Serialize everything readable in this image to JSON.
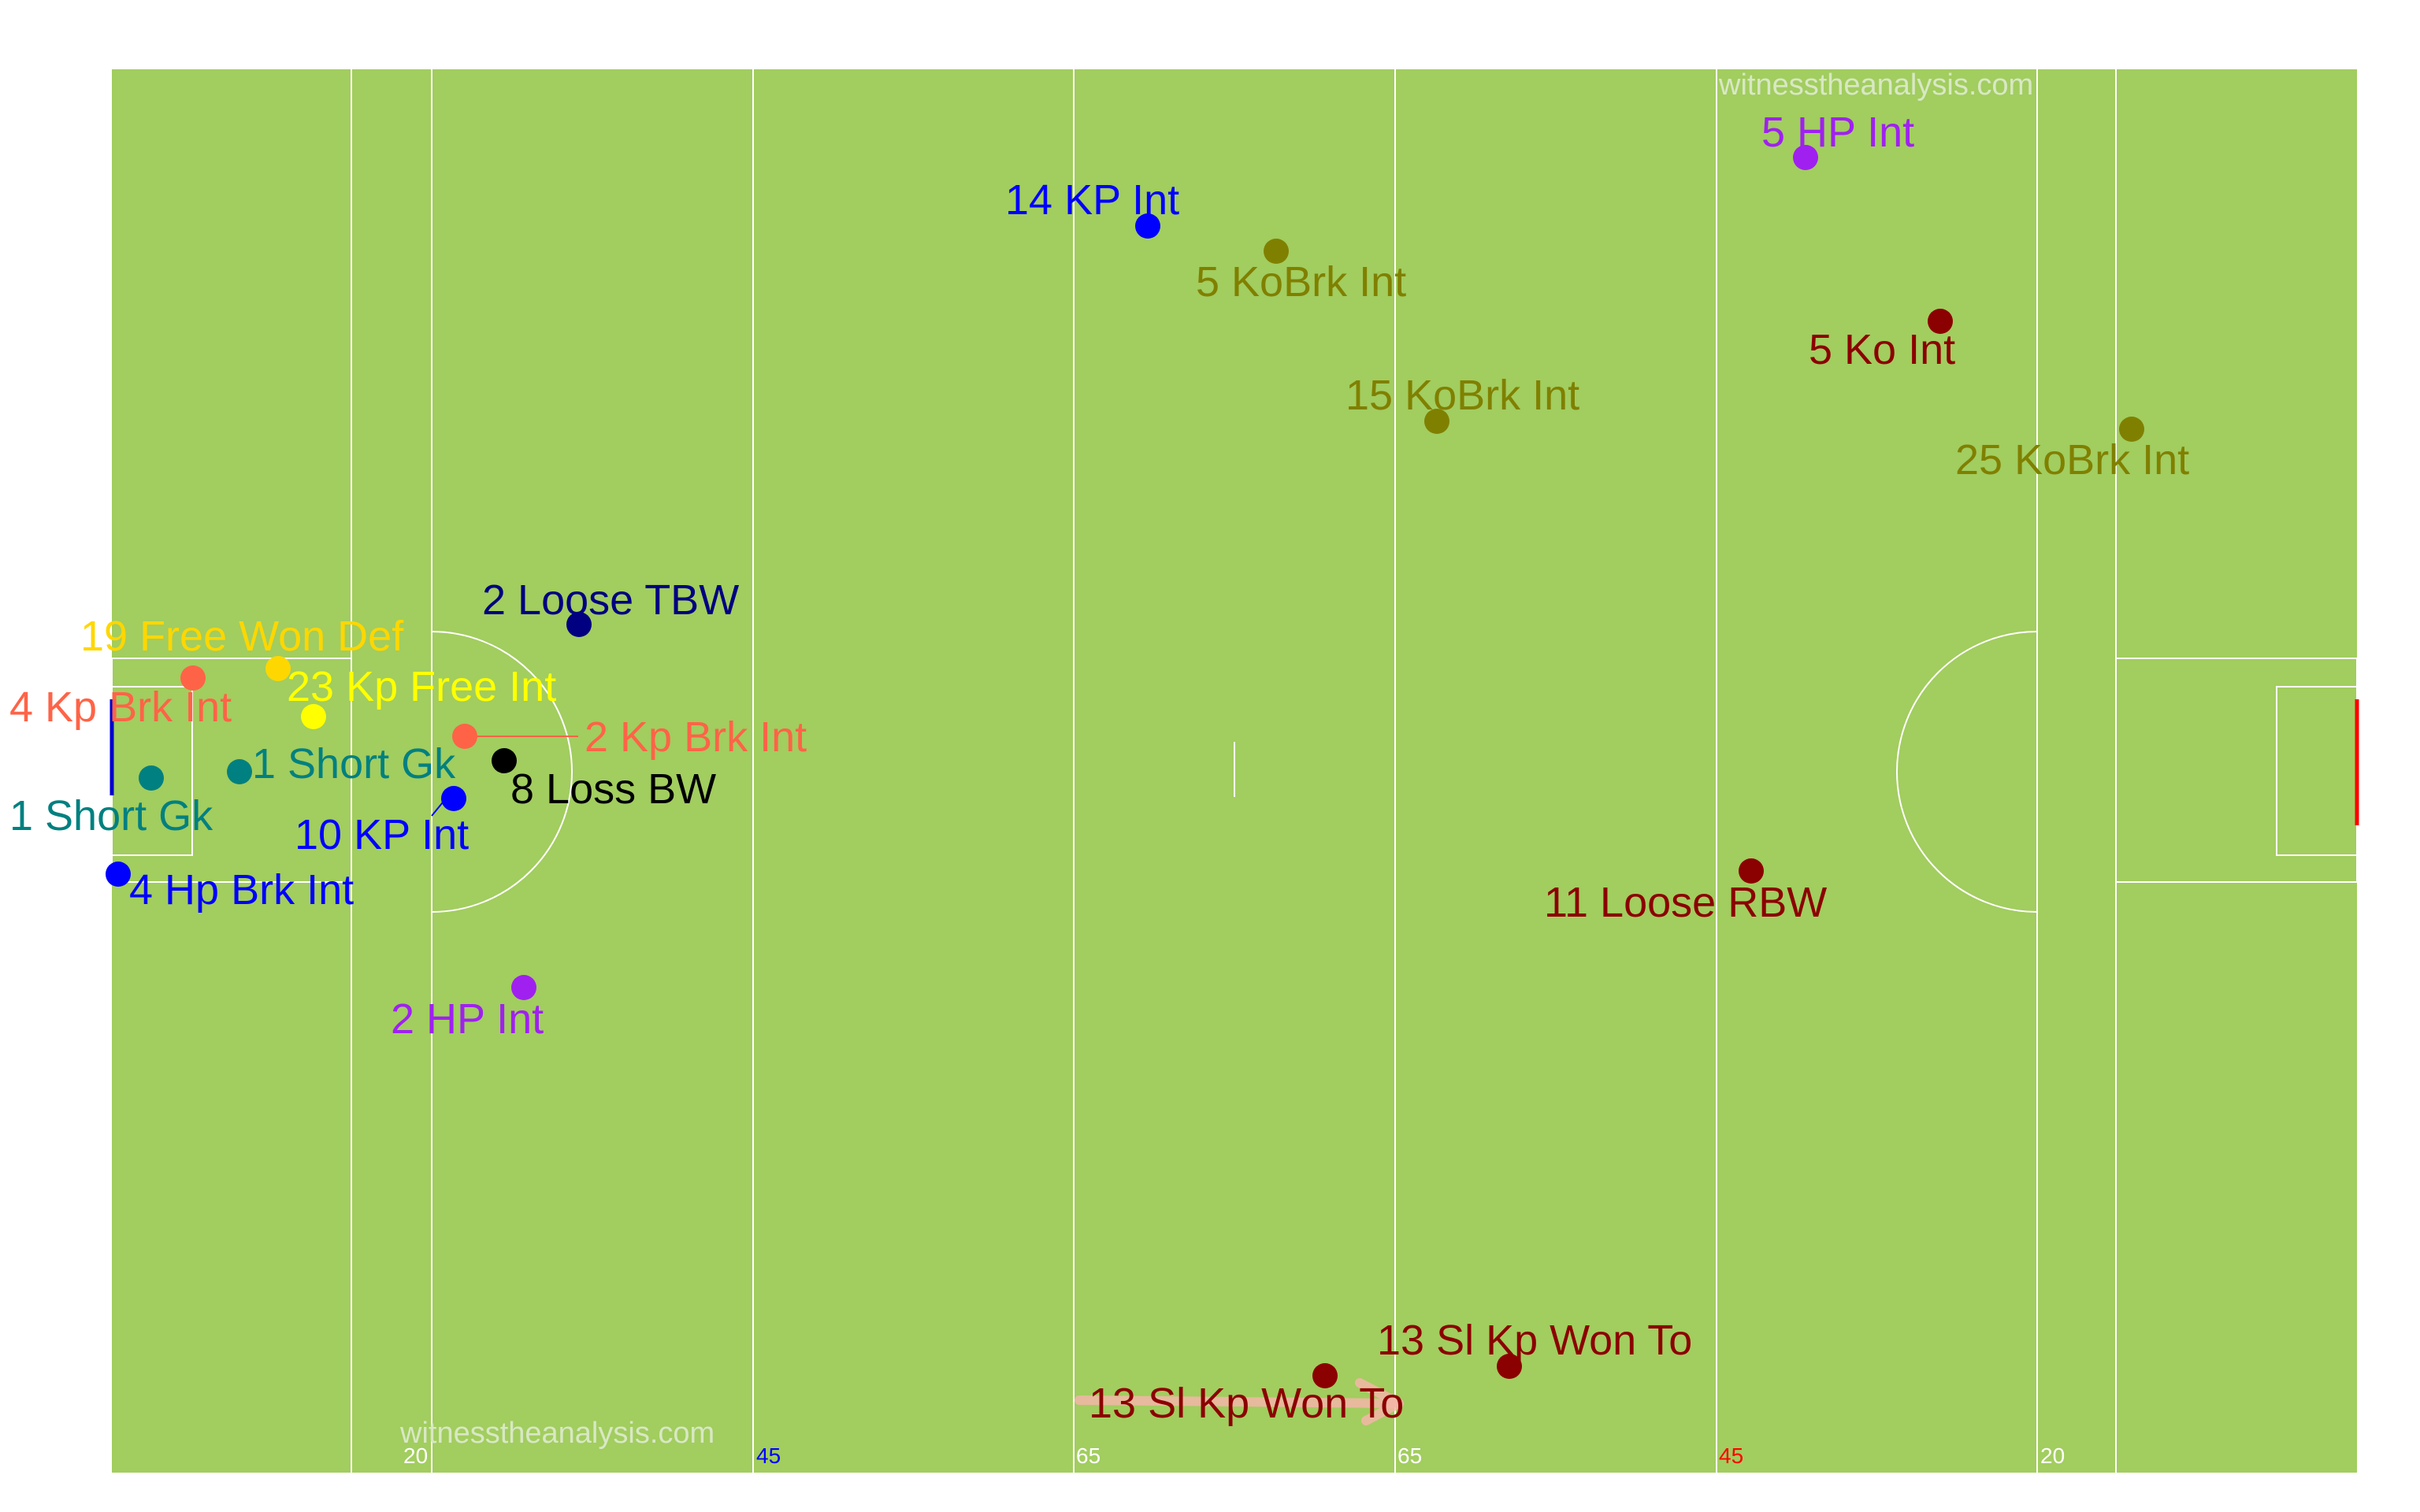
{
  "watermarks": [
    "witnesstheanalysis.com",
    "witnesstheanalysis.com"
  ],
  "colors": {
    "pitch": "#a2cd5f",
    "line": "#ffffff",
    "right_goal": "#ff0000",
    "left_goal": "#0000cc"
  },
  "line_markers": [
    {
      "label": "20",
      "color": "#ffffff"
    },
    {
      "label": "45",
      "color": "#0000ff"
    },
    {
      "label": "65",
      "color": "#ffffff"
    },
    {
      "label": "65",
      "color": "#ffffff"
    },
    {
      "label": "45",
      "color": "#ff0000"
    },
    {
      "label": "20",
      "color": "#ffffff"
    }
  ],
  "events": [
    {
      "label": "5 HP Int",
      "color": "#a020f0"
    },
    {
      "label": "14 KP Int",
      "color": "#0000ff"
    },
    {
      "label": "5 KoBrk Int",
      "color": "#808000"
    },
    {
      "label": "5 Ko Int",
      "color": "#8b0000"
    },
    {
      "label": "15 KoBrk Int",
      "color": "#808000"
    },
    {
      "label": "25 KoBrk Int",
      "color": "#808000"
    },
    {
      "label": "2 Loose TBW",
      "color": "#000080"
    },
    {
      "label": "19 Free Won Def",
      "color": "#ffd700"
    },
    {
      "label": "23 Kp Free Int",
      "color": "#ffff00"
    },
    {
      "label": "4 Kp Brk Int",
      "color": "#ff6347"
    },
    {
      "label": "2 Kp Brk Int",
      "color": "#ff6347"
    },
    {
      "label": "1 Short Gk",
      "color": "#008080"
    },
    {
      "label": "1 Short Gk",
      "color": "#008080"
    },
    {
      "label": "8 Loss BW",
      "color": "#000000"
    },
    {
      "label": "10 KP Int",
      "color": "#0000ff"
    },
    {
      "label": "4 Hp Brk Int",
      "color": "#0000ff"
    },
    {
      "label": "11 Loose RBW",
      "color": "#8b0000"
    },
    {
      "label": "2 HP Int",
      "color": "#a020f0"
    },
    {
      "label": "13 Sl Kp Won To",
      "color": "#8b0000"
    },
    {
      "label": "13 Sl Kp Won To",
      "color": "#8b0000"
    }
  ]
}
